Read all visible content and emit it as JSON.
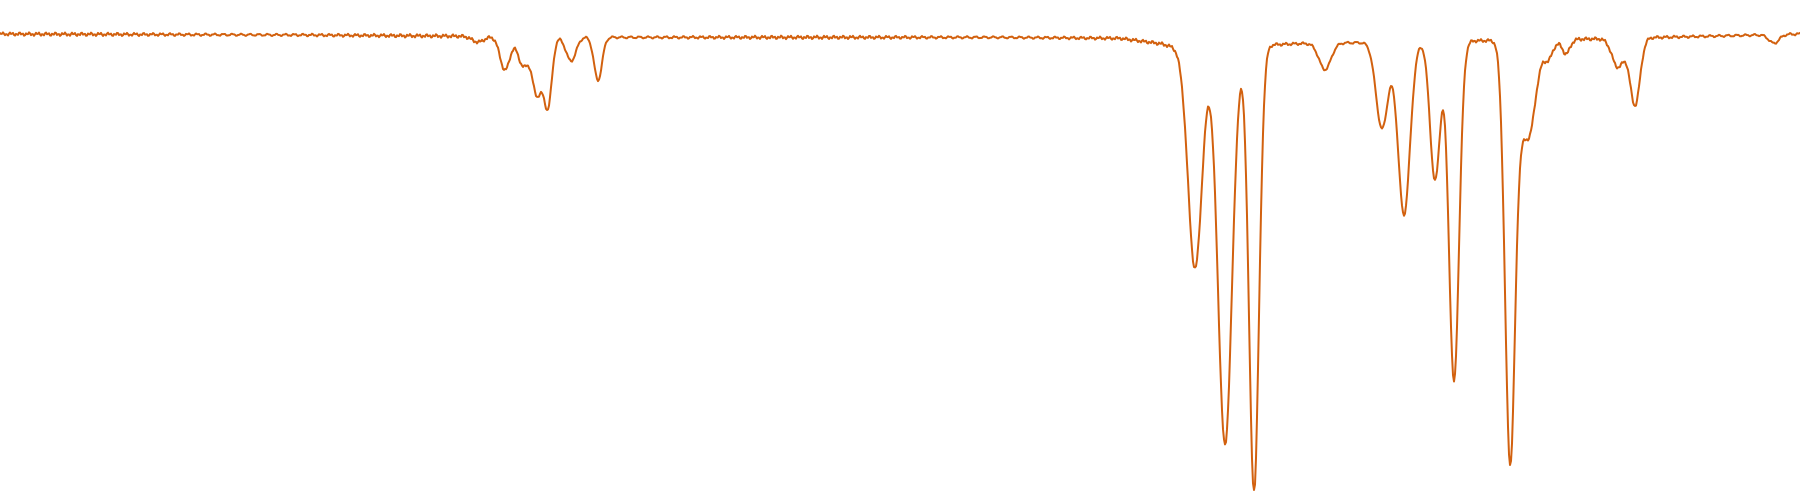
{
  "chart_data": {
    "type": "line",
    "title": "",
    "xlabel": "",
    "ylabel": "",
    "grid": false,
    "legend": "none",
    "xlim": [
      0,
      1800
    ],
    "ylim": [
      0,
      1
    ],
    "style": {
      "line_color": "#d2610f"
    },
    "series": [
      {
        "baseline": 0.95,
        "noise": 0.004,
        "drift": [
          {
            "x": 0,
            "y": 0.95
          },
          {
            "x": 300,
            "y": 0.948
          },
          {
            "x": 620,
            "y": 0.943
          },
          {
            "x": 1000,
            "y": 0.943
          },
          {
            "x": 1120,
            "y": 0.941
          },
          {
            "x": 1160,
            "y": 0.93
          },
          {
            "x": 1180,
            "y": 0.92
          },
          {
            "x": 1300,
            "y": 0.93
          },
          {
            "x": 1600,
            "y": 0.94
          },
          {
            "x": 1800,
            "y": 0.95
          }
        ],
        "peaks": [
          {
            "center": 478,
            "depth": 0.012,
            "width": 6
          },
          {
            "center": 505,
            "depth": 0.07,
            "width": 5
          },
          {
            "center": 523,
            "depth": 0.06,
            "width": 5
          },
          {
            "center": 537,
            "depth": 0.12,
            "width": 5
          },
          {
            "center": 548,
            "depth": 0.14,
            "width": 4
          },
          {
            "center": 571,
            "depth": 0.05,
            "width": 5
          },
          {
            "center": 598,
            "depth": 0.09,
            "width": 4
          },
          {
            "center": 1195,
            "depth": 0.46,
            "width": 7
          },
          {
            "center": 1225,
            "depth": 0.83,
            "width": 7
          },
          {
            "center": 1254,
            "depth": 0.93,
            "width": 5
          },
          {
            "center": 1325,
            "depth": 0.055,
            "width": 6
          },
          {
            "center": 1382,
            "depth": 0.18,
            "width": 6
          },
          {
            "center": 1404,
            "depth": 0.36,
            "width": 6
          },
          {
            "center": 1435,
            "depth": 0.29,
            "width": 5
          },
          {
            "center": 1454,
            "depth": 0.71,
            "width": 5
          },
          {
            "center": 1510,
            "depth": 0.85,
            "width": 5
          },
          {
            "center": 1524,
            "depth": 0.16,
            "width": 8
          },
          {
            "center": 1532,
            "depth": 0.08,
            "width": 6
          },
          {
            "center": 1548,
            "depth": 0.04,
            "width": 5
          },
          {
            "center": 1566,
            "depth": 0.03,
            "width": 4
          },
          {
            "center": 1618,
            "depth": 0.06,
            "width": 6
          },
          {
            "center": 1635,
            "depth": 0.14,
            "width": 5
          },
          {
            "center": 1774,
            "depth": 0.018,
            "width": 5
          }
        ]
      }
    ]
  }
}
